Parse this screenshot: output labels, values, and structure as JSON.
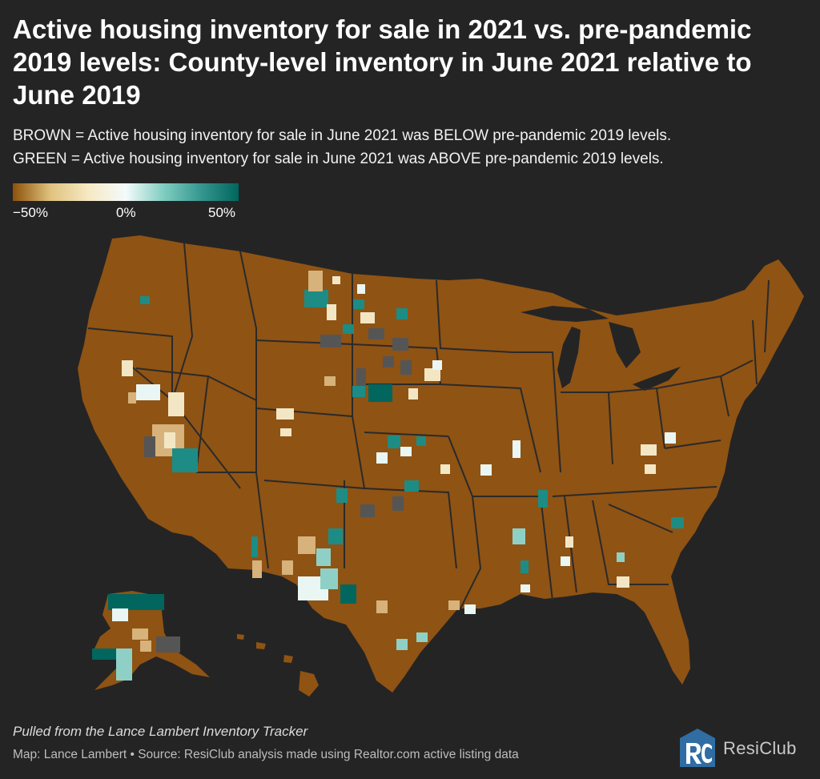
{
  "title": "Active housing inventory for sale in 2021 vs. pre-pandemic 2019 levels: County-level inventory in June 2021 relative to June 2019",
  "subtitle_line1": "BROWN = Active housing inventory for sale in June 2021 was BELOW pre-pandemic 2019 levels.",
  "subtitle_line2": "GREEN = Active housing inventory for sale in June 2021 was ABOVE pre-pandemic 2019 levels.",
  "legend": {
    "min_label": "−50%",
    "mid_label": "0%",
    "max_label": "50%",
    "min_value": -50,
    "mid_value": 0,
    "max_value": 50,
    "colors": [
      "#8c510a",
      "#dfc27d",
      "#f6e8c3",
      "#f4fbfb",
      "#80cdc1",
      "#35978f",
      "#01665e"
    ]
  },
  "map_colors": {
    "background": "#242424",
    "base_fill": "#8f5314",
    "state_border": "#2a2a2a",
    "no_data": "#555555",
    "tan": "#d7b27a",
    "cream": "#f3e6c4",
    "pale": "#e9f6f4",
    "light_teal": "#8fd0c6",
    "teal": "#1d8c84",
    "dark_teal": "#01665e"
  },
  "footer_note": "Pulled from the Lance Lambert Inventory Tracker",
  "footer_source": "Map: Lance Lambert • Source: ResiClub analysis made using Realtor.com active listing data",
  "brand_name": "ResiClub"
}
